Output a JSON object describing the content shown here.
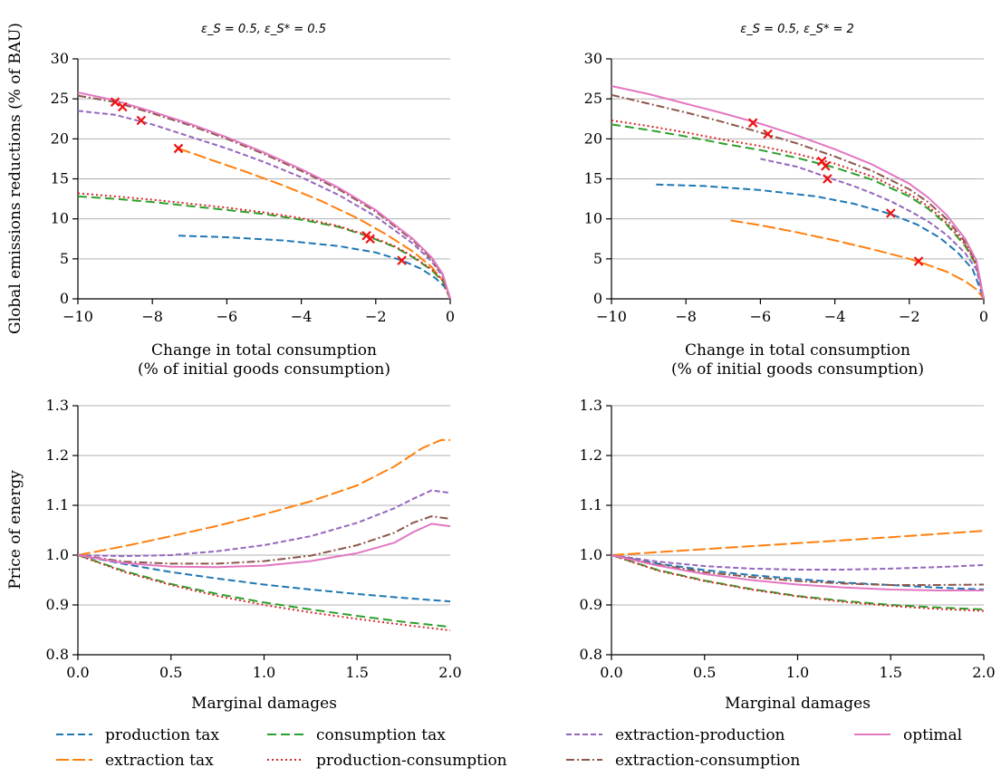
{
  "colors": {
    "production_tax": "#1f77b4",
    "extraction_tax": "#ff7f0e",
    "consumption_tax": "#2ca02c",
    "production_consumption": "#d62728",
    "extraction_production": "#9467bd",
    "extraction_consumption": "#8c564b",
    "optimal": "#e377c2",
    "marker": "#ee1111",
    "grid": "#b0b0b0"
  },
  "legend": [
    {
      "key": "production_tax",
      "label": "production tax",
      "dash": "8,4"
    },
    {
      "key": "extraction_tax",
      "label": "extraction tax",
      "dash": "14,4"
    },
    {
      "key": "consumption_tax",
      "label": "consumption tax",
      "dash": "10,5"
    },
    {
      "key": "production_consumption",
      "label": "production-consumption",
      "dash": "2,3"
    },
    {
      "key": "extraction_production",
      "label": "extraction-production",
      "dash": "6,3"
    },
    {
      "key": "extraction_consumption",
      "label": "extraction-consumption",
      "dash": "9,3,2,3"
    },
    {
      "key": "optimal",
      "label": "optimal",
      "dash": ""
    }
  ],
  "chart_data": [
    {
      "id": "top-left",
      "type": "line",
      "title": "ε_S = 0.5, ε_S* = 0.5",
      "xlabel": "Change in total consumption\n(% of initial goods consumption)",
      "ylabel": "Global emissions reductions (% of BAU)",
      "xlim": [
        -10,
        0
      ],
      "ylim": [
        0,
        30
      ],
      "xticks": [
        -10,
        -8,
        -6,
        -4,
        -2,
        0
      ],
      "xticklabels": [
        "−10",
        "−8",
        "−6",
        "−4",
        "−2",
        "0"
      ],
      "yticks": [
        0,
        5,
        10,
        15,
        20,
        25,
        30
      ],
      "yticklabels": [
        "0",
        "5",
        "10",
        "15",
        "20",
        "25",
        "30"
      ],
      "grid": "horizontal",
      "series": [
        {
          "key": "production_tax",
          "x": [
            -7.3,
            -6,
            -4.5,
            -3,
            -2,
            -1.3,
            -0.8,
            -0.4,
            -0.15,
            0
          ],
          "y": [
            7.9,
            7.7,
            7.3,
            6.6,
            5.8,
            4.8,
            3.8,
            2.6,
            1.5,
            0
          ]
        },
        {
          "key": "extraction_tax",
          "x": [
            -7.3,
            -6.5,
            -5.5,
            -4.5,
            -3.5,
            -2.5,
            -1.7,
            -1,
            -0.5,
            -0.2,
            0
          ],
          "y": [
            18.8,
            17.5,
            15.9,
            14.2,
            12.3,
            10.1,
            8.0,
            5.9,
            4.0,
            2.3,
            0
          ]
        },
        {
          "key": "consumption_tax",
          "x": [
            -10,
            -9,
            -8,
            -7,
            -6,
            -5,
            -4,
            -3,
            -2.2,
            -1.5,
            -1,
            -0.5,
            -0.2,
            0
          ],
          "y": [
            12.8,
            12.5,
            12.1,
            11.6,
            11.1,
            10.6,
            9.9,
            9.0,
            7.8,
            6.5,
            5.2,
            3.6,
            2.2,
            0
          ]
        },
        {
          "key": "production_consumption",
          "x": [
            -10,
            -9,
            -8,
            -7,
            -6,
            -5,
            -4,
            -3,
            -2.2,
            -1.5,
            -1,
            -0.5,
            -0.2,
            0
          ],
          "y": [
            13.2,
            12.8,
            12.4,
            11.9,
            11.4,
            10.8,
            10.1,
            9.1,
            7.9,
            6.6,
            5.3,
            3.7,
            2.3,
            0
          ]
        },
        {
          "key": "extraction_production",
          "x": [
            -10,
            -9,
            -8,
            -7,
            -6,
            -5,
            -4,
            -3,
            -2,
            -1,
            -0.5,
            -0.2,
            0
          ],
          "y": [
            23.5,
            23.0,
            21.8,
            20.3,
            18.8,
            17.1,
            15.2,
            13.0,
            10.3,
            6.9,
            4.7,
            2.8,
            0
          ]
        },
        {
          "key": "extraction_consumption",
          "x": [
            -10,
            -9,
            -8,
            -7,
            -6,
            -5,
            -4,
            -3,
            -2,
            -1,
            -0.5,
            -0.2,
            0
          ],
          "y": [
            25.4,
            24.6,
            23.2,
            21.7,
            20.0,
            18.1,
            16.0,
            13.7,
            10.9,
            7.3,
            5.0,
            3.0,
            0
          ]
        },
        {
          "key": "optimal",
          "x": [
            -10,
            -9,
            -8,
            -7,
            -6,
            -5,
            -4,
            -3,
            -2,
            -1,
            -0.5,
            -0.2,
            0
          ],
          "y": [
            25.8,
            24.8,
            23.4,
            21.9,
            20.2,
            18.3,
            16.2,
            13.9,
            11.1,
            7.5,
            5.2,
            3.1,
            0
          ]
        }
      ],
      "markers": [
        {
          "x": -9.0,
          "y": 24.6
        },
        {
          "x": -8.8,
          "y": 24.0
        },
        {
          "x": -8.3,
          "y": 22.3
        },
        {
          "x": -7.3,
          "y": 18.8
        },
        {
          "x": -2.25,
          "y": 7.9
        },
        {
          "x": -2.15,
          "y": 7.5
        },
        {
          "x": -1.3,
          "y": 4.8
        }
      ]
    },
    {
      "id": "top-right",
      "type": "line",
      "title": "ε_S = 0.5, ε_S* = 2",
      "xlabel": "Change in total consumption\n(% of initial goods consumption)",
      "ylabel": "",
      "xlim": [
        -10,
        0
      ],
      "ylim": [
        0,
        30
      ],
      "xticks": [
        -10,
        -8,
        -6,
        -4,
        -2,
        0
      ],
      "xticklabels": [
        "−10",
        "−8",
        "−6",
        "−4",
        "−2",
        "0"
      ],
      "yticks": [
        0,
        5,
        10,
        15,
        20,
        25,
        30
      ],
      "yticklabels": [
        "0",
        "5",
        "10",
        "15",
        "20",
        "25",
        "30"
      ],
      "grid": "horizontal",
      "series": [
        {
          "key": "production_tax",
          "x": [
            -8.8,
            -7.5,
            -6,
            -4.5,
            -3.5,
            -2.5,
            -1.8,
            -1.2,
            -0.7,
            -0.3,
            0
          ],
          "y": [
            14.3,
            14.1,
            13.6,
            12.8,
            11.9,
            10.6,
            9.3,
            7.7,
            5.8,
            3.7,
            0
          ]
        },
        {
          "key": "extraction_tax",
          "x": [
            -6.8,
            -6,
            -5,
            -4,
            -3,
            -2,
            -1.6,
            -1,
            -0.5,
            -0.2,
            0
          ],
          "y": [
            9.8,
            9.2,
            8.3,
            7.3,
            6.2,
            5.0,
            4.4,
            3.4,
            2.2,
            1.2,
            0
          ]
        },
        {
          "key": "consumption_tax",
          "x": [
            -10,
            -9,
            -8,
            -7,
            -6,
            -5,
            -4,
            -3,
            -2,
            -1.5,
            -1,
            -0.5,
            -0.2,
            0
          ],
          "y": [
            21.8,
            21.1,
            20.3,
            19.4,
            18.6,
            17.6,
            16.4,
            14.9,
            12.8,
            11.3,
            9.3,
            6.6,
            4.2,
            0
          ]
        },
        {
          "key": "production_consumption",
          "x": [
            -10,
            -9,
            -8,
            -7,
            -6,
            -5,
            -4,
            -3,
            -2,
            -1.5,
            -1,
            -0.5,
            -0.2,
            0
          ],
          "y": [
            22.3,
            21.6,
            20.8,
            19.9,
            19.1,
            18.1,
            16.9,
            15.3,
            13.1,
            11.6,
            9.5,
            6.8,
            4.3,
            0
          ]
        },
        {
          "key": "extraction_production",
          "x": [
            -6,
            -5,
            -4.2,
            -3.5,
            -3,
            -2.5,
            -2,
            -1.5,
            -1,
            -0.5,
            -0.2,
            0
          ],
          "y": [
            17.5,
            16.5,
            15.2,
            14.1,
            13.2,
            12.2,
            11.0,
            9.7,
            8.0,
            5.7,
            3.7,
            0
          ]
        },
        {
          "key": "extraction_consumption",
          "x": [
            -10,
            -9,
            -8,
            -7,
            -6,
            -5,
            -4,
            -3,
            -2,
            -1.5,
            -1,
            -0.5,
            -0.2,
            0
          ],
          "y": [
            25.5,
            24.4,
            23.3,
            22.1,
            20.8,
            19.4,
            17.8,
            16.0,
            13.7,
            12.1,
            10.0,
            7.1,
            4.6,
            0
          ]
        },
        {
          "key": "optimal",
          "x": [
            -10,
            -9,
            -8,
            -7,
            -6,
            -5,
            -4,
            -3,
            -2,
            -1.5,
            -1,
            -0.5,
            -0.2,
            0
          ],
          "y": [
            26.6,
            25.6,
            24.4,
            23.2,
            21.9,
            20.4,
            18.7,
            16.8,
            14.4,
            12.7,
            10.5,
            7.5,
            4.8,
            0
          ]
        }
      ],
      "markers": [
        {
          "x": -6.2,
          "y": 22.0
        },
        {
          "x": -5.8,
          "y": 20.6
        },
        {
          "x": -4.35,
          "y": 17.2
        },
        {
          "x": -4.25,
          "y": 16.6
        },
        {
          "x": -4.2,
          "y": 15.0
        },
        {
          "x": -2.5,
          "y": 10.7
        },
        {
          "x": -1.75,
          "y": 4.7
        }
      ]
    },
    {
      "id": "bottom-left",
      "type": "line",
      "title": "",
      "xlabel": "Marginal damages",
      "ylabel": "Price of energy",
      "xlim": [
        0,
        2
      ],
      "ylim": [
        0.8,
        1.3
      ],
      "xticks": [
        0,
        0.5,
        1,
        1.5,
        2
      ],
      "xticklabels": [
        "0.0",
        "0.5",
        "1.0",
        "1.5",
        "2.0"
      ],
      "yticks": [
        0.8,
        0.9,
        1.0,
        1.1,
        1.2,
        1.3
      ],
      "yticklabels": [
        "0.8",
        "0.9",
        "1.0",
        "1.1",
        "1.2",
        "1.3"
      ],
      "grid": "horizontal",
      "series": [
        {
          "key": "production_tax",
          "x": [
            0,
            0.25,
            0.5,
            0.75,
            1,
            1.25,
            1.5,
            1.75,
            2
          ],
          "y": [
            1.0,
            0.982,
            0.966,
            0.953,
            0.941,
            0.931,
            0.922,
            0.914,
            0.907
          ]
        },
        {
          "key": "extraction_tax",
          "x": [
            0,
            0.25,
            0.5,
            0.75,
            1,
            1.25,
            1.5,
            1.7,
            1.85,
            1.95,
            2
          ],
          "y": [
            1.0,
            1.018,
            1.038,
            1.059,
            1.082,
            1.108,
            1.14,
            1.178,
            1.215,
            1.231,
            1.231
          ]
        },
        {
          "key": "consumption_tax",
          "x": [
            0,
            0.25,
            0.5,
            0.75,
            1,
            1.25,
            1.5,
            1.75,
            2
          ],
          "y": [
            1.0,
            0.968,
            0.942,
            0.922,
            0.905,
            0.891,
            0.878,
            0.866,
            0.856
          ]
        },
        {
          "key": "production_consumption",
          "x": [
            0,
            0.25,
            0.5,
            0.75,
            1,
            1.25,
            1.5,
            1.75,
            2
          ],
          "y": [
            1.0,
            0.966,
            0.94,
            0.918,
            0.9,
            0.885,
            0.872,
            0.86,
            0.849
          ]
        },
        {
          "key": "extraction_production",
          "x": [
            0,
            0.25,
            0.5,
            0.75,
            1,
            1.25,
            1.5,
            1.7,
            1.8,
            1.9,
            2
          ],
          "y": [
            1.0,
            0.998,
            1.0,
            1.008,
            1.02,
            1.038,
            1.065,
            1.094,
            1.113,
            1.13,
            1.125
          ]
        },
        {
          "key": "extraction_consumption",
          "x": [
            0,
            0.25,
            0.5,
            0.75,
            1,
            1.25,
            1.5,
            1.7,
            1.8,
            1.9,
            2
          ],
          "y": [
            1.0,
            0.987,
            0.983,
            0.983,
            0.988,
            0.999,
            1.02,
            1.045,
            1.065,
            1.078,
            1.073
          ]
        },
        {
          "key": "optimal",
          "x": [
            0,
            0.25,
            0.5,
            0.75,
            1,
            1.25,
            1.5,
            1.7,
            1.8,
            1.9,
            2
          ],
          "y": [
            1.0,
            0.984,
            0.977,
            0.976,
            0.979,
            0.988,
            1.004,
            1.025,
            1.046,
            1.063,
            1.058
          ]
        }
      ],
      "markers": []
    },
    {
      "id": "bottom-right",
      "type": "line",
      "title": "",
      "xlabel": "Marginal damages",
      "ylabel": "",
      "xlim": [
        0,
        2
      ],
      "ylim": [
        0.8,
        1.3
      ],
      "xticks": [
        0,
        0.5,
        1,
        1.5,
        2
      ],
      "xticklabels": [
        "0.0",
        "0.5",
        "1.0",
        "1.5",
        "2.0"
      ],
      "yticks": [
        0.8,
        0.9,
        1.0,
        1.1,
        1.2,
        1.3
      ],
      "yticklabels": [
        "0.8",
        "0.9",
        "1.0",
        "1.1",
        "1.2",
        "1.3"
      ],
      "grid": "horizontal",
      "series": [
        {
          "key": "production_tax",
          "x": [
            0,
            0.25,
            0.5,
            0.75,
            1,
            1.25,
            1.5,
            1.75,
            2
          ],
          "y": [
            1.0,
            0.983,
            0.97,
            0.96,
            0.952,
            0.945,
            0.94,
            0.935,
            0.931
          ]
        },
        {
          "key": "extraction_tax",
          "x": [
            0,
            0.5,
            1,
            1.5,
            2
          ],
          "y": [
            1.0,
            1.012,
            1.024,
            1.036,
            1.049
          ]
        },
        {
          "key": "consumption_tax",
          "x": [
            0,
            0.25,
            0.5,
            0.75,
            1,
            1.25,
            1.5,
            1.75,
            2
          ],
          "y": [
            1.0,
            0.97,
            0.949,
            0.932,
            0.918,
            0.908,
            0.9,
            0.895,
            0.891
          ]
        },
        {
          "key": "production_consumption",
          "x": [
            0,
            0.25,
            0.5,
            0.75,
            1,
            1.25,
            1.5,
            1.75,
            2
          ],
          "y": [
            1.0,
            0.969,
            0.948,
            0.931,
            0.917,
            0.906,
            0.898,
            0.892,
            0.888
          ]
        },
        {
          "key": "extraction_production",
          "x": [
            0,
            0.25,
            0.5,
            0.75,
            1,
            1.25,
            1.5,
            1.75,
            2
          ],
          "y": [
            1.0,
            0.987,
            0.978,
            0.973,
            0.971,
            0.971,
            0.973,
            0.976,
            0.98
          ]
        },
        {
          "key": "extraction_consumption",
          "x": [
            0,
            0.25,
            0.5,
            0.75,
            1,
            1.25,
            1.5,
            1.75,
            2
          ],
          "y": [
            1.0,
            0.981,
            0.966,
            0.956,
            0.948,
            0.943,
            0.94,
            0.94,
            0.941
          ]
        },
        {
          "key": "optimal",
          "x": [
            0,
            0.25,
            0.5,
            0.75,
            1,
            1.25,
            1.5,
            1.75,
            2
          ],
          "y": [
            1.0,
            0.979,
            0.962,
            0.95,
            0.941,
            0.935,
            0.931,
            0.929,
            0.929
          ]
        }
      ],
      "markers": []
    }
  ]
}
